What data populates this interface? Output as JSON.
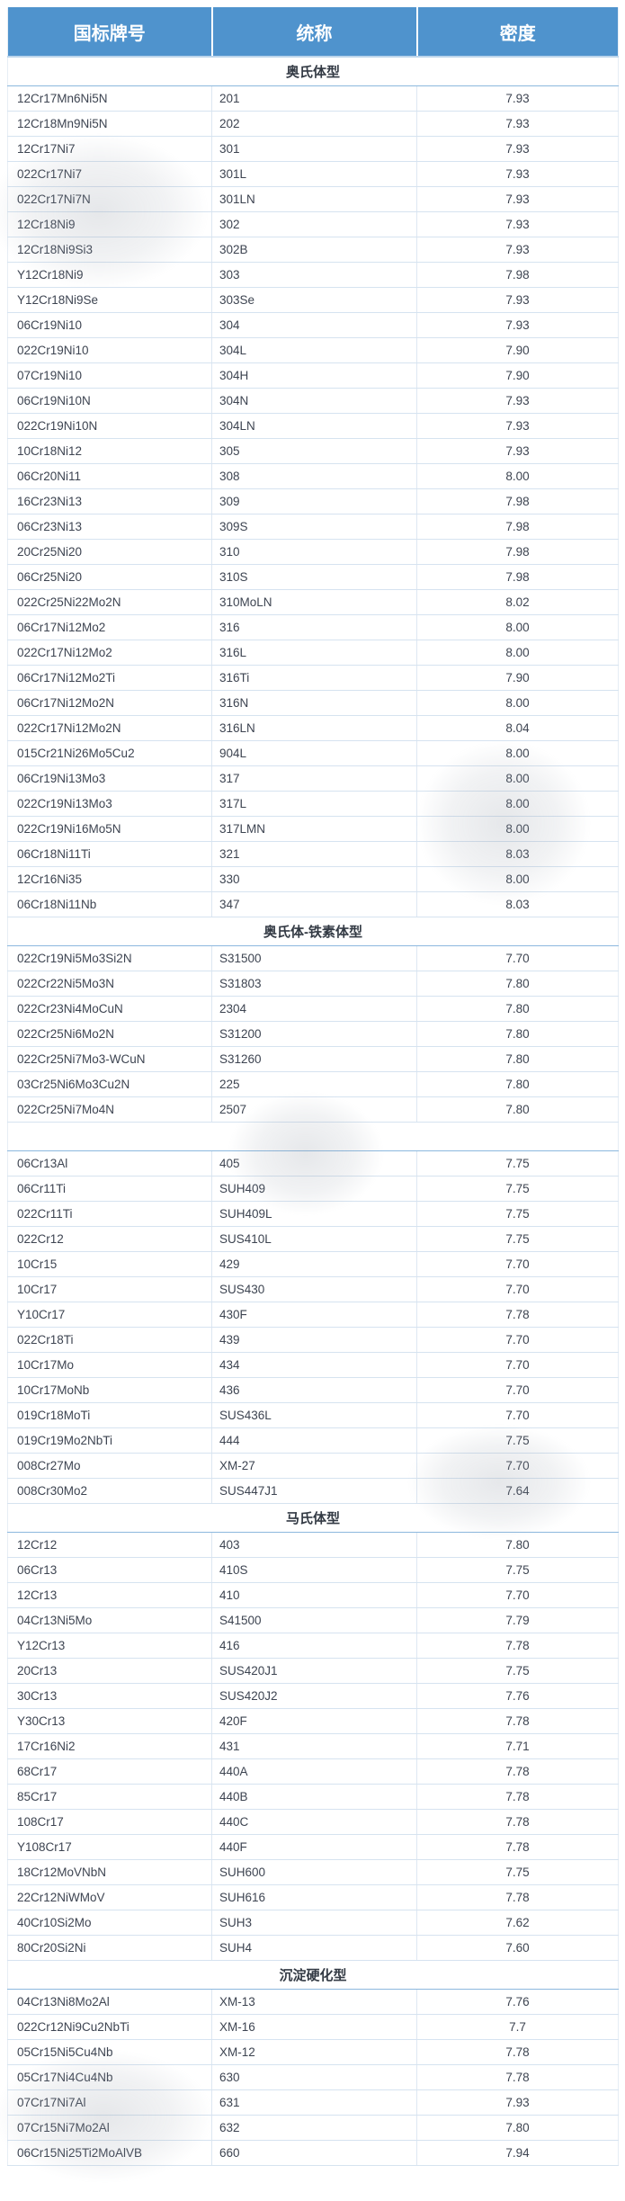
{
  "table": {
    "columns": [
      "国标牌号",
      "统称",
      "密度"
    ],
    "sections": [
      {
        "label": "奥氏体型",
        "rows": [
          [
            "12Cr17Mn6Ni5N",
            "201",
            "7.93"
          ],
          [
            "12Cr18Mn9Ni5N",
            "202",
            "7.93"
          ],
          [
            "12Cr17Ni7",
            "301",
            "7.93"
          ],
          [
            "022Cr17Ni7",
            "301L",
            "7.93"
          ],
          [
            "022Cr17Ni7N",
            "301LN",
            "7.93"
          ],
          [
            "12Cr18Ni9",
            "302",
            "7.93"
          ],
          [
            "12Cr18Ni9Si3",
            "302B",
            "7.93"
          ],
          [
            "Y12Cr18Ni9",
            "303",
            "7.98"
          ],
          [
            "Y12Cr18Ni9Se",
            "303Se",
            "7.93"
          ],
          [
            "06Cr19Ni10",
            "304",
            "7.93"
          ],
          [
            "022Cr19Ni10",
            "304L",
            "7.90"
          ],
          [
            "07Cr19Ni10",
            "304H",
            "7.90"
          ],
          [
            "06Cr19Ni10N",
            "304N",
            "7.93"
          ],
          [
            "022Cr19Ni10N",
            "304LN",
            "7.93"
          ],
          [
            "10Cr18Ni12",
            "305",
            "7.93"
          ],
          [
            "06Cr20Ni11",
            "308",
            "8.00"
          ],
          [
            "16Cr23Ni13",
            "309",
            "7.98"
          ],
          [
            "06Cr23Ni13",
            "309S",
            "7.98"
          ],
          [
            "20Cr25Ni20",
            "310",
            "7.98"
          ],
          [
            "06Cr25Ni20",
            "310S",
            "7.98"
          ],
          [
            "022Cr25Ni22Mo2N",
            "310MoLN",
            "8.02"
          ],
          [
            "06Cr17Ni12Mo2",
            "316",
            "8.00"
          ],
          [
            "022Cr17Ni12Mo2",
            "316L",
            "8.00"
          ],
          [
            "06Cr17Ni12Mo2Ti",
            "316Ti",
            "7.90"
          ],
          [
            "06Cr17Ni12Mo2N",
            "316N",
            "8.00"
          ],
          [
            "022Cr17Ni12Mo2N",
            "316LN",
            "8.04"
          ],
          [
            "015Cr21Ni26Mo5Cu2",
            "904L",
            "8.00"
          ],
          [
            "06Cr19Ni13Mo3",
            "317",
            "8.00"
          ],
          [
            "022Cr19Ni13Mo3",
            "317L",
            "8.00"
          ],
          [
            "022Cr19Ni16Mo5N",
            "317LMN",
            "8.00"
          ],
          [
            "06Cr18Ni11Ti",
            "321",
            "8.03"
          ],
          [
            "12Cr16Ni35",
            "330",
            "8.00"
          ],
          [
            "06Cr18Ni11Nb",
            "347",
            "8.03"
          ]
        ]
      },
      {
        "label": "奥氏体-铁素体型",
        "rows": [
          [
            "022Cr19Ni5Mo3Si2N",
            "S31500",
            "7.70"
          ],
          [
            "022Cr22Ni5Mo3N",
            "S31803",
            "7.80"
          ],
          [
            "022Cr23Ni4MoCuN",
            "2304",
            "7.80"
          ],
          [
            "022Cr25Ni6Mo2N",
            "S31200",
            "7.80"
          ],
          [
            "022Cr25Ni7Mo3-WCuN",
            "S31260",
            "7.80"
          ],
          [
            "03Cr25Ni6Mo3Cu2N",
            "225",
            "7.80"
          ],
          [
            "022Cr25Ni7Mo4N",
            "2507",
            "7.80"
          ]
        ]
      },
      {
        "label": "",
        "rows": [
          [
            "06Cr13Al",
            "405",
            "7.75"
          ],
          [
            "06Cr11Ti",
            "SUH409",
            "7.75"
          ],
          [
            "022Cr11Ti",
            "SUH409L",
            "7.75"
          ],
          [
            "022Cr12",
            "SUS410L",
            "7.75"
          ],
          [
            "10Cr15",
            "429",
            "7.70"
          ],
          [
            "10Cr17",
            "SUS430",
            "7.70"
          ],
          [
            "Y10Cr17",
            "430F",
            "7.78"
          ],
          [
            "022Cr18Ti",
            "439",
            "7.70"
          ],
          [
            "10Cr17Mo",
            "434",
            "7.70"
          ],
          [
            "10Cr17MoNb",
            "436",
            "7.70"
          ],
          [
            "019Cr18MoTi",
            "SUS436L",
            "7.70"
          ],
          [
            "019Cr19Mo2NbTi",
            "444",
            "7.75"
          ],
          [
            "008Cr27Mo",
            "XM-27",
            "7.70"
          ],
          [
            "008Cr30Mo2",
            "SUS447J1",
            "7.64"
          ]
        ]
      },
      {
        "label": "马氏体型",
        "rows": [
          [
            "12Cr12",
            "403",
            "7.80"
          ],
          [
            "06Cr13",
            "410S",
            "7.75"
          ],
          [
            "12Cr13",
            "410",
            "7.70"
          ],
          [
            "04Cr13Ni5Mo",
            "S41500",
            "7.79"
          ],
          [
            "Y12Cr13",
            "416",
            "7.78"
          ],
          [
            "20Cr13",
            "SUS420J1",
            "7.75"
          ],
          [
            "30Cr13",
            "SUS420J2",
            "7.76"
          ],
          [
            "Y30Cr13",
            "420F",
            "7.78"
          ],
          [
            "17Cr16Ni2",
            "431",
            "7.71"
          ],
          [
            "68Cr17",
            "440A",
            "7.78"
          ],
          [
            "85Cr17",
            "440B",
            "7.78"
          ],
          [
            "108Cr17",
            "440C",
            "7.78"
          ],
          [
            "Y108Cr17",
            "440F",
            "7.78"
          ],
          [
            "18Cr12MoVNbN",
            "SUH600",
            "7.75"
          ],
          [
            "22Cr12NiWMoV",
            "SUH616",
            "7.78"
          ],
          [
            "40Cr10Si2Mo",
            "SUH3",
            "7.62"
          ],
          [
            "80Cr20Si2Ni",
            "SUH4",
            "7.60"
          ]
        ]
      },
      {
        "label": "沉淀硬化型",
        "rows": [
          [
            "04Cr13Ni8Mo2Al",
            "XM-13",
            "7.76"
          ],
          [
            "022Cr12Ni9Cu2NbTi",
            "XM-16",
            "7.7"
          ],
          [
            "05Cr15Ni5Cu4Nb",
            "XM-12",
            "7.78"
          ],
          [
            "05Cr17Ni4Cu4Nb",
            "630",
            "7.78"
          ],
          [
            "07Cr17Ni7Al",
            "631",
            "7.93"
          ],
          [
            "07Cr15Ni7Mo2Al",
            "632",
            "7.80"
          ],
          [
            "06Cr15Ni25Ti2MoAlVB",
            "660",
            "7.94"
          ]
        ]
      }
    ]
  },
  "colors": {
    "header_bg": "#4f93cd",
    "header_text": "#ffffff",
    "row_border": "#d6e3f0",
    "section_border": "#8cb8de",
    "body_text": "#3d4451"
  }
}
